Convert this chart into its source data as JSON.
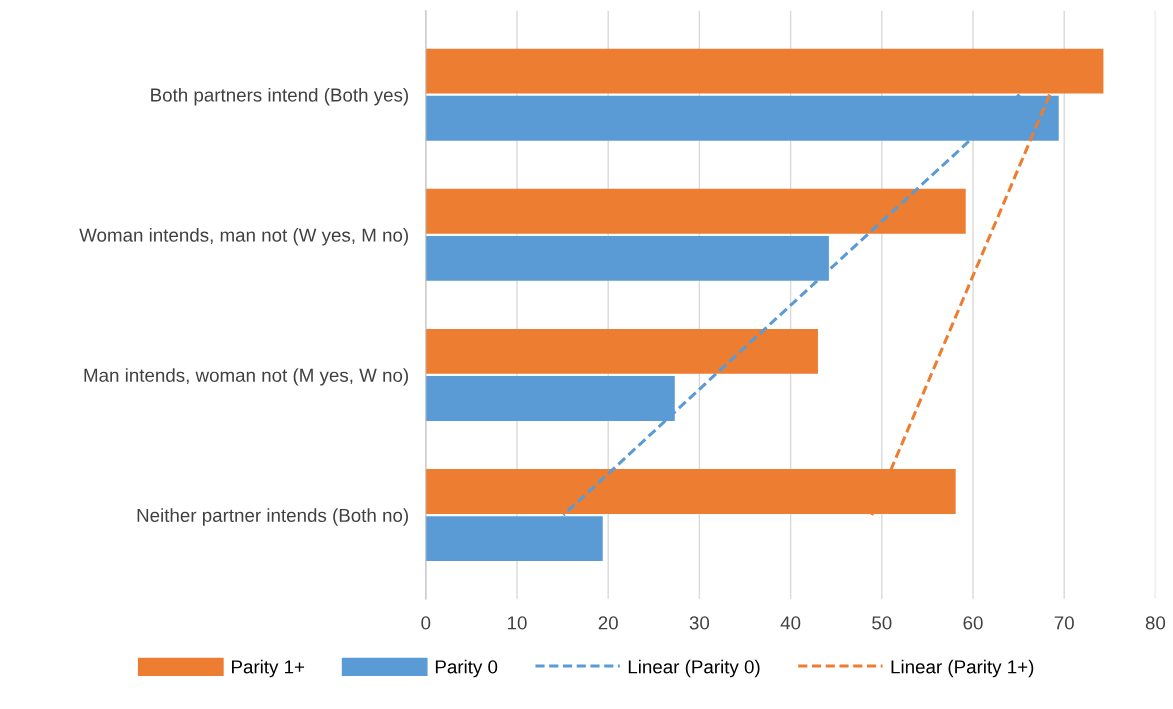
{
  "chart_data": {
    "type": "bar",
    "orientation": "horizontal",
    "categories": [
      "Both partners intend (Both yes)",
      "Woman intends, man not (W yes, M no)",
      "Man intends, woman not (M yes, W no)",
      "Neither partner intends (Both no)"
    ],
    "series": [
      {
        "name": "Parity 1+",
        "color": "#ed7d31",
        "values": [
          74.3,
          59.2,
          43.0,
          58.1
        ]
      },
      {
        "name": "Parity 0",
        "color": "#5b9bd5",
        "values": [
          69.4,
          44.2,
          27.3,
          19.4
        ]
      },
      {
        "name": "Linear (Parity 0)",
        "type": "line",
        "line_style": "dashed",
        "color": "#5b9bd5",
        "values": [
          65.1,
          48.4,
          31.7,
          15.1
        ]
      },
      {
        "name": "Linear (Parity 1+)",
        "type": "line",
        "line_style": "dashed",
        "color": "#ed7d31",
        "values": [
          68.4,
          61.9,
          55.4,
          48.9
        ]
      }
    ],
    "xlim": [
      0,
      80
    ],
    "xticks": [
      0,
      10,
      20,
      30,
      40,
      50,
      60,
      70,
      80
    ],
    "grid": "x",
    "legend": "bottom"
  }
}
